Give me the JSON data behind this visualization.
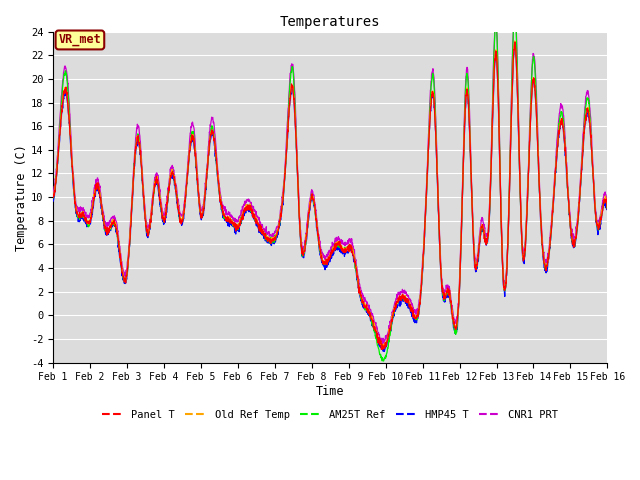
{
  "title": "Temperatures",
  "xlabel": "Time",
  "ylabel": "Temperature (C)",
  "ylim": [
    -4,
    24
  ],
  "xlim": [
    0,
    15
  ],
  "annotation_text": "VR_met",
  "annotation_color": "#8B0000",
  "annotation_bg": "#FFFF99",
  "bg_color": "#DCDCDC",
  "grid_color": "#FFFFFF",
  "series_colors": {
    "Panel T": "#FF0000",
    "Old Ref Temp": "#FFA500",
    "AM25T Ref": "#00EE00",
    "HMP45 T": "#0000FF",
    "CNR1 PRT": "#CC00CC"
  },
  "yticks": [
    -4,
    -2,
    0,
    2,
    4,
    6,
    8,
    10,
    12,
    14,
    16,
    18,
    20,
    22,
    24
  ],
  "xtick_labels": [
    "Feb 1",
    "Feb 2",
    "Feb 3",
    "Feb 4",
    "Feb 5",
    "Feb 6",
    "Feb 7",
    "Feb 8",
    "Feb 9",
    "Feb 10",
    "Feb 11",
    "Feb 12",
    "Feb 13",
    "Feb 14",
    "Feb 15",
    "Feb 16"
  ],
  "figsize": [
    6.4,
    4.8
  ],
  "dpi": 100
}
